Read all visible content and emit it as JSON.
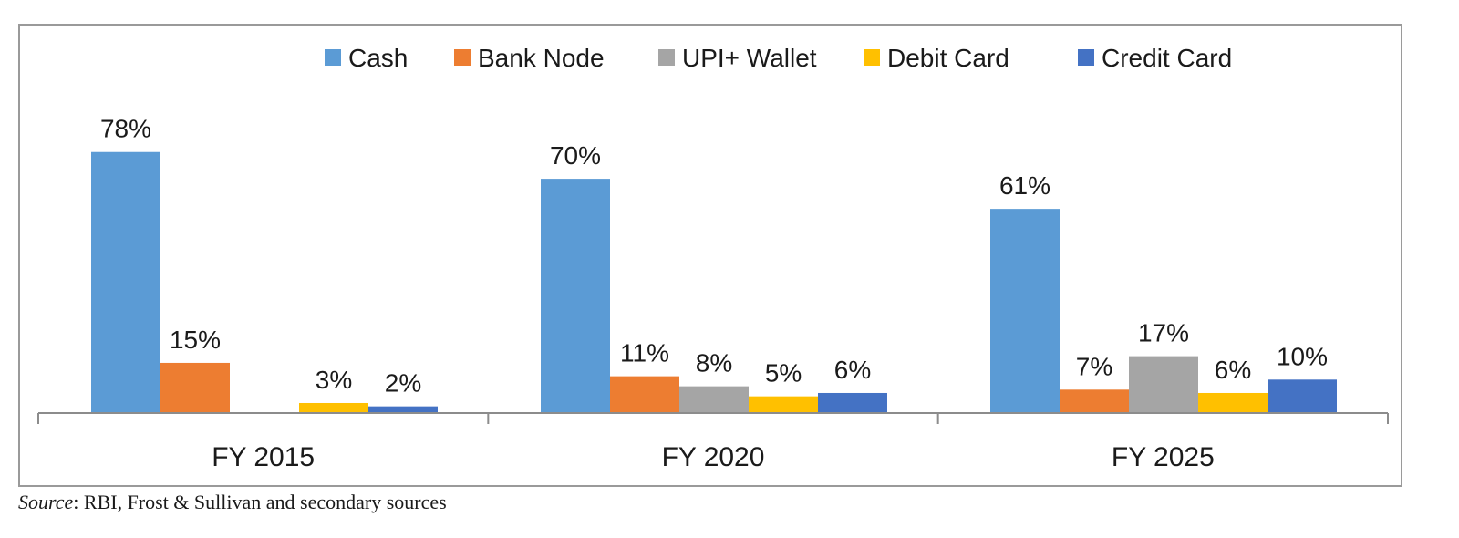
{
  "chart_data": {
    "type": "bar",
    "categories": [
      "FY 2015",
      "FY 2020",
      "FY 2025"
    ],
    "series": [
      {
        "name": "Cash",
        "color": "#5b9bd5",
        "values": [
          78,
          70,
          61
        ],
        "labels": [
          "78%",
          "70%",
          "61%"
        ]
      },
      {
        "name": "Bank Node",
        "color": "#ed7d31",
        "values": [
          15,
          11,
          7
        ],
        "labels": [
          "15%",
          "11%",
          "7%"
        ]
      },
      {
        "name": "UPI+ Wallet",
        "color": "#a5a5a5",
        "values": [
          null,
          8,
          17
        ],
        "labels": [
          "",
          "8%",
          "17%"
        ]
      },
      {
        "name": "Debit Card",
        "color": "#ffc000",
        "values": [
          3,
          5,
          6
        ],
        "labels": [
          "3%",
          "5%",
          "6%"
        ]
      },
      {
        "name": "Credit Card",
        "color": "#4472c4",
        "values": [
          2,
          6,
          10
        ],
        "labels": [
          "2%",
          "6%",
          "10%"
        ]
      }
    ],
    "ylim": [
      0,
      100
    ],
    "legend_position": "top",
    "grid": false
  },
  "source": {
    "label": "Source",
    "text": ": RBI, Frost & Sullivan and secondary sources"
  }
}
